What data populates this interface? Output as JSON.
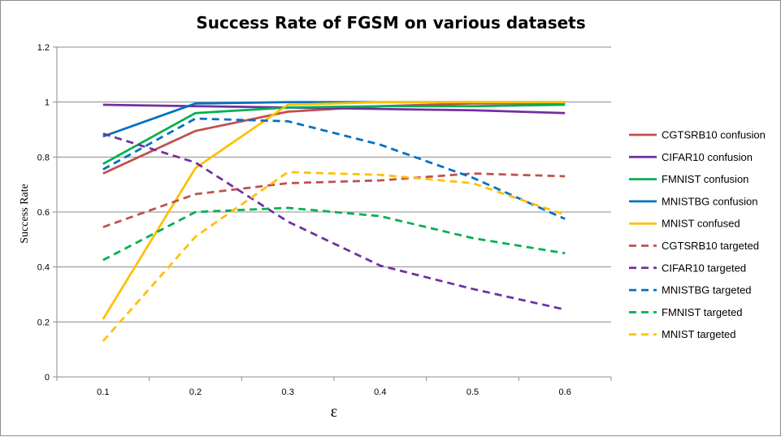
{
  "chart_data": {
    "type": "line",
    "title": "Success Rate of FGSM on various datasets",
    "xlabel": "ε",
    "ylabel": "Success Rate",
    "x": [
      0.1,
      0.2,
      0.3,
      0.4,
      0.5,
      0.6
    ],
    "x_tick_labels": [
      "0.1",
      "0.2",
      "0.3",
      "0.4",
      "0.5",
      "0.6"
    ],
    "y_ticks": [
      0,
      0.2,
      0.4,
      0.6,
      0.8,
      1,
      1.2
    ],
    "y_tick_labels": [
      "0",
      "0.2",
      "0.4",
      "0.6",
      "0.8",
      "1",
      "1.2"
    ],
    "ylim": [
      0,
      1.2
    ],
    "grid": "horizontal",
    "legend_position": "right",
    "series": [
      {
        "name": "CGTSRB10 confusion",
        "color": "#c0504d",
        "style": "solid",
        "values": [
          0.74,
          0.895,
          0.965,
          0.985,
          0.995,
          0.995
        ]
      },
      {
        "name": "CIFAR10 confusion",
        "color": "#7030a0",
        "style": "solid",
        "values": [
          0.99,
          0.985,
          0.98,
          0.975,
          0.97,
          0.96
        ]
      },
      {
        "name": "FMNIST confusion",
        "color": "#00b050",
        "style": "solid",
        "values": [
          0.775,
          0.96,
          0.98,
          0.985,
          0.985,
          0.99
        ]
      },
      {
        "name": "MNISTBG confusion",
        "color": "#0070c0",
        "style": "solid",
        "values": [
          0.875,
          0.995,
          1.0,
          1.0,
          1.0,
          1.0
        ]
      },
      {
        "name": "MNIST confused",
        "color": "#ffc000",
        "style": "solid",
        "values": [
          0.21,
          0.76,
          0.99,
          1.0,
          1.0,
          1.0
        ]
      },
      {
        "name": "CGTSRB10 targeted",
        "color": "#c0504d",
        "style": "dashed",
        "values": [
          0.545,
          0.665,
          0.705,
          0.715,
          0.74,
          0.73
        ]
      },
      {
        "name": "CIFAR10 targeted",
        "color": "#7030a0",
        "style": "dashed",
        "values": [
          0.885,
          0.78,
          0.565,
          0.405,
          0.32,
          0.245
        ]
      },
      {
        "name": "MNISTBG targeted",
        "color": "#0070c0",
        "style": "dashed",
        "values": [
          0.755,
          0.94,
          0.93,
          0.845,
          0.725,
          0.575
        ]
      },
      {
        "name": "FMNIST targeted",
        "color": "#00b050",
        "style": "dashed",
        "values": [
          0.425,
          0.6,
          0.615,
          0.585,
          0.505,
          0.45
        ]
      },
      {
        "name": "MNIST targeted",
        "color": "#ffc000",
        "style": "dashed",
        "values": [
          0.13,
          0.51,
          0.745,
          0.735,
          0.705,
          0.59
        ]
      }
    ]
  }
}
